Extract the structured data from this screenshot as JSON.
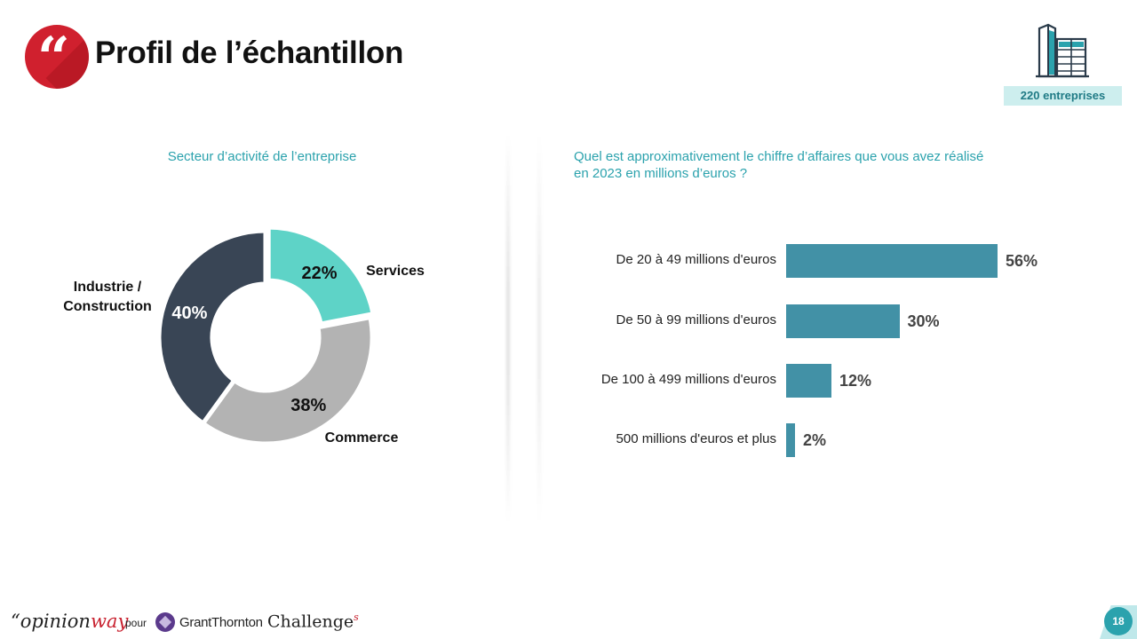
{
  "header": {
    "title": "Profil de l’échantillon",
    "quote_glyph": "“",
    "icon": "building-icon",
    "sample_badge": "220 entreprises"
  },
  "colors": {
    "services": "#5ed3c7",
    "commerce": "#b3b3b3",
    "industrie": "#394555",
    "bars": "#4291a6",
    "accent": "#2ba2ad",
    "brand_red": "#d0202e"
  },
  "chart_data": [
    {
      "type": "pie",
      "title": "Secteur d’activité de l’entreprise",
      "series": [
        {
          "name": "Services",
          "value": 22,
          "label": "22%"
        },
        {
          "name": "Commerce",
          "value": 38,
          "label": "38%"
        },
        {
          "name": "Industrie / Construction",
          "value": 40,
          "label": "40%"
        }
      ],
      "name_lines": [
        [
          "Services"
        ],
        [
          "Commerce"
        ],
        [
          "Industrie /",
          "Construction"
        ]
      ]
    },
    {
      "type": "bar",
      "orientation": "horizontal",
      "title": "Quel est approximativement le chiffre d’affaires que vous avez réalisé en 2023 en millions d’euros ?",
      "categories": [
        "De 20 à 49 millions  d'euros",
        "De 50 à 99 millions  d'euros",
        "De 100 à 499 millions  d'euros",
        "500 millions  d'euros et plus"
      ],
      "values": [
        56,
        30,
        12,
        2
      ],
      "labels": [
        "56%",
        "30%",
        "12%",
        "2%"
      ]
    }
  ],
  "footer": {
    "brand_prefix": "“opinion",
    "brand_suffix": "way",
    "pour": "pour",
    "partner1": "GrantThornton",
    "partner2": "Challenge",
    "partner2_sup": "s",
    "page": "18"
  }
}
